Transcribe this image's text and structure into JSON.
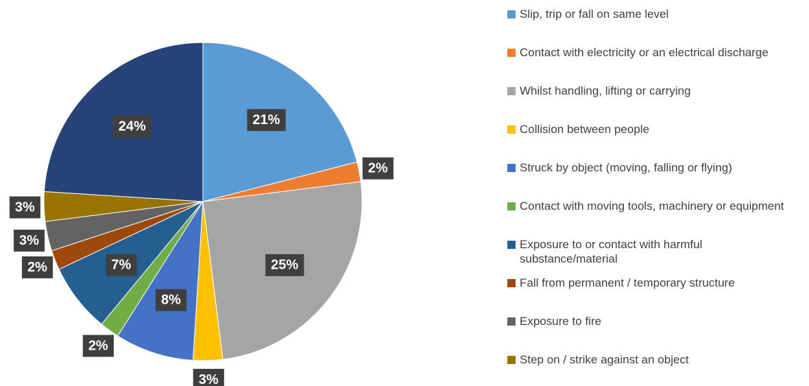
{
  "chart_data": {
    "type": "pie",
    "categories": [
      "Slip, trip or fall on same level",
      "Contact with electricity or an electrical discharge",
      "Whilst handling, lifting or carrying",
      "Collision between people",
      "Struck by object (moving, falling or flying)",
      "Contact with moving tools, machinery or equipment",
      "Exposure to or contact with harmful substance/material",
      "Fall from permanent / temporary structure",
      "Exposure to fire",
      "Step on / strike against an object",
      null
    ],
    "values": [
      21,
      2,
      25,
      3,
      8,
      2,
      7,
      2,
      3,
      3,
      24
    ],
    "value_labels": [
      "21%",
      "2%",
      "25%",
      "3%",
      "8%",
      "2%",
      "7%",
      "2%",
      "3%",
      "3%",
      "24%"
    ],
    "colors": [
      "#5b9bd5",
      "#ed7d31",
      "#a5a5a5",
      "#ffc000",
      "#4472c4",
      "#70ad47",
      "#255e91",
      "#9e480e",
      "#636363",
      "#997300",
      "#264478"
    ],
    "legend": "right"
  }
}
